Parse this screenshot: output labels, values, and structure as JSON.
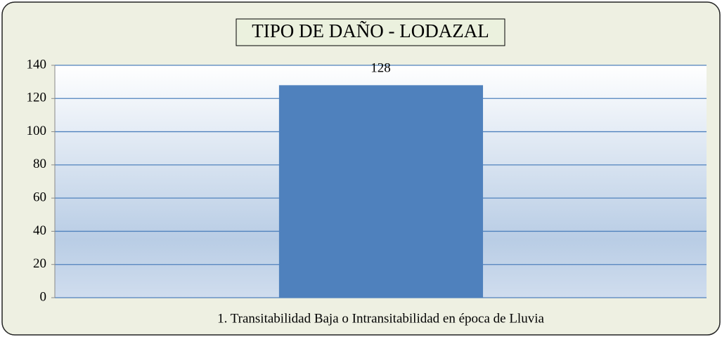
{
  "chart_data": {
    "type": "bar",
    "title": "TIPO DE DAÑO - LODAZAL",
    "categories": [
      "1. Transitabilidad Baja o Intransitabilidad en época de Lluvia"
    ],
    "values": [
      128
    ],
    "color": "#4f81bd",
    "ylim": [
      0,
      140
    ],
    "yticks": [
      0,
      20,
      40,
      60,
      80,
      100,
      120,
      140
    ],
    "grid": true
  }
}
